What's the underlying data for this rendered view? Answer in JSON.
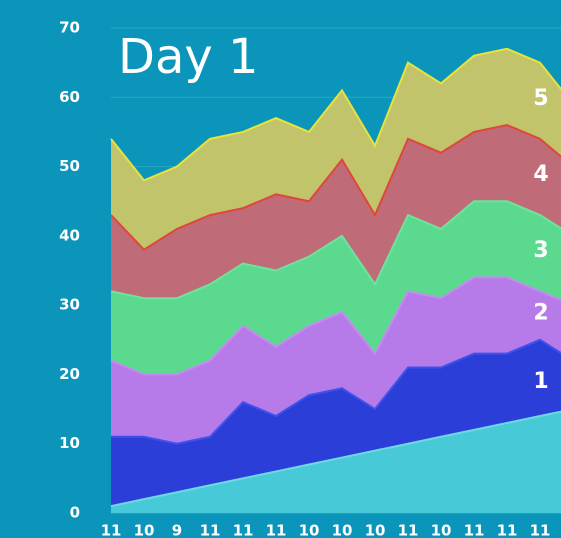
{
  "chart_data": {
    "type": "stacked_area",
    "title": "Day 1",
    "categories": [
      "11",
      "10",
      "9",
      "11",
      "11",
      "11",
      "10",
      "10",
      "10",
      "11",
      "10",
      "11",
      "11",
      "11",
      null
    ],
    "series": [
      {
        "color": "#48c9d8",
        "line": "#6fd8e4",
        "values": [
          1,
          2,
          3,
          4,
          5,
          6,
          7,
          8,
          9,
          10,
          11,
          12,
          13,
          14,
          15
        ]
      },
      {
        "name": "1",
        "color": "#2b3fd8",
        "line": "#3d52ec",
        "values": [
          10,
          9,
          7,
          7,
          11,
          8,
          10,
          10,
          6,
          11,
          10,
          11,
          10,
          11,
          7
        ]
      },
      {
        "name": "2",
        "color": "#b67be8",
        "line": "#c48cf0",
        "values": [
          11,
          9,
          10,
          11,
          11,
          10,
          10,
          11,
          8,
          11,
          10,
          11,
          11,
          7,
          8
        ]
      },
      {
        "name": "3",
        "color": "#5bd98e",
        "line": "#6fe29d",
        "values": [
          10,
          11,
          11,
          11,
          9,
          11,
          10,
          11,
          10,
          11,
          10,
          11,
          11,
          11,
          10
        ]
      },
      {
        "name": "4",
        "color": "#c06b78",
        "line": "#e0473c",
        "values": [
          11,
          7,
          10,
          10,
          8,
          11,
          8,
          11,
          10,
          11,
          11,
          10,
          11,
          11,
          10
        ]
      },
      {
        "name": "5",
        "color": "#c1c46a",
        "line": "#e8e23a",
        "values": [
          11,
          10,
          9,
          11,
          11,
          11,
          10,
          10,
          10,
          11,
          10,
          11,
          11,
          11,
          9
        ]
      }
    ],
    "ylim": [
      0,
      70
    ],
    "yticks": [
      0,
      10,
      20,
      30,
      40,
      50,
      60,
      70
    ],
    "grid": true
  }
}
